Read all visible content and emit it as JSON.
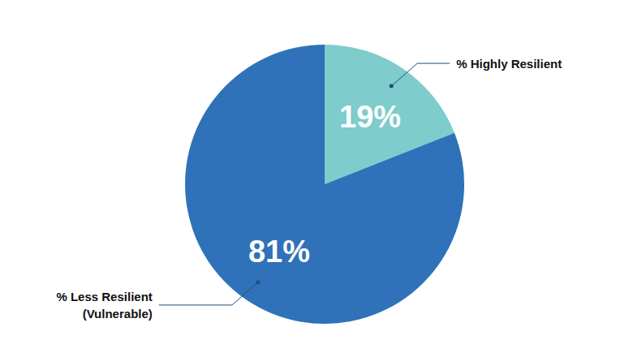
{
  "chart_data": {
    "type": "pie",
    "categories": [
      "% Highly Resilient",
      "% Less Resilient (Vulnerable)"
    ],
    "values": [
      19,
      81
    ],
    "value_labels": [
      "19%",
      "81%"
    ],
    "colors": [
      "#7ecccc",
      "#2f72b9"
    ],
    "data_labels": true
  }
}
